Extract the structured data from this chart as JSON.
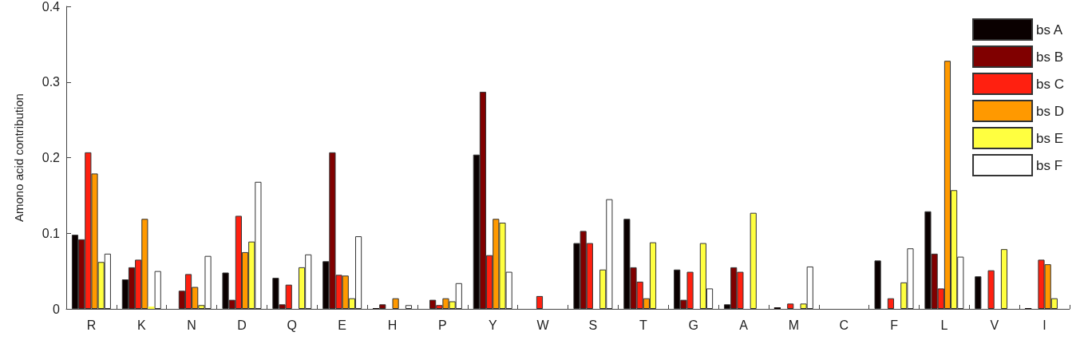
{
  "chart_data": {
    "type": "bar",
    "ylabel": "Amono acid contribution",
    "categories": [
      "R",
      "K",
      "N",
      "D",
      "Q",
      "E",
      "H",
      "P",
      "Y",
      "W",
      "S",
      "T",
      "G",
      "A",
      "M",
      "C",
      "F",
      "L",
      "V",
      "I"
    ],
    "series": [
      {
        "name": "bs A",
        "color": "#0a0000",
        "values": [
          0.098,
          0.039,
          0,
          0.048,
          0.041,
          0.063,
          0.001,
          0,
          0.204,
          0,
          0.087,
          0.119,
          0.052,
          0.006,
          0.002,
          0,
          0.064,
          0.129,
          0.043,
          0.001
        ]
      },
      {
        "name": "bs B",
        "color": "#800000",
        "values": [
          0.092,
          0.055,
          0.024,
          0.012,
          0.006,
          0.207,
          0.006,
          0.012,
          0.287,
          0,
          0.103,
          0.055,
          0.012,
          0.055,
          0,
          0,
          0,
          0.073,
          0,
          0
        ]
      },
      {
        "name": "bs C",
        "color": "#ff2010",
        "values": [
          0.207,
          0.065,
          0.046,
          0.123,
          0.032,
          0.045,
          0,
          0.005,
          0.071,
          0.017,
          0.087,
          0.036,
          0.049,
          0.049,
          0.007,
          0,
          0.014,
          0.027,
          0.051,
          0.065
        ]
      },
      {
        "name": "bs D",
        "color": "#ff9900",
        "values": [
          0.179,
          0.119,
          0.029,
          0.075,
          0,
          0.044,
          0.014,
          0.014,
          0.119,
          0,
          0,
          0.014,
          0,
          0,
          0,
          0,
          0,
          0.328,
          0,
          0.059
        ]
      },
      {
        "name": "bs E",
        "color": "#ffff40",
        "values": [
          0.062,
          0.003,
          0.005,
          0.089,
          0.055,
          0.014,
          0,
          0.01,
          0.114,
          0,
          0.052,
          0.088,
          0.087,
          0.127,
          0.007,
          0,
          0.035,
          0.157,
          0.079,
          0.014
        ]
      },
      {
        "name": "bs F",
        "color": "#ffffff",
        "values": [
          0.073,
          0.05,
          0.07,
          0.168,
          0.072,
          0.096,
          0.005,
          0.034,
          0.049,
          0,
          0.145,
          0.001,
          0.027,
          0.001,
          0.056,
          0,
          0.08,
          0.069,
          0.001,
          0
        ]
      }
    ],
    "ylim": [
      0,
      0.4
    ],
    "yticks": [
      0,
      0.1,
      0.2,
      0.3,
      0.4
    ],
    "grid": false,
    "legend": "top right"
  }
}
